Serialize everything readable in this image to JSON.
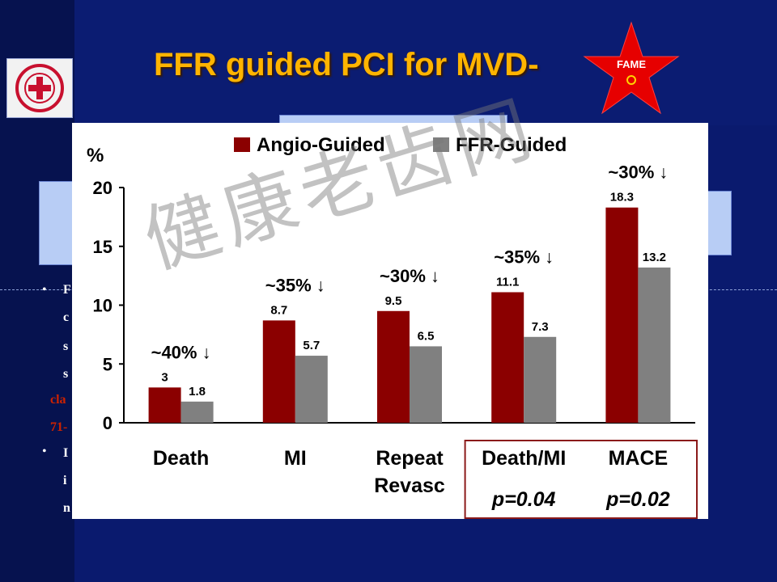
{
  "slide": {
    "title": "FFR guided PCI for MVD-",
    "badge_text": "FAME",
    "watermark": "健康老齿网",
    "left_bullets": [
      "•",
      "•"
    ],
    "side_fragments": [
      {
        "text": "F",
        "color": "#ffffff"
      },
      {
        "text": "c",
        "color": "#ffffff"
      },
      {
        "text": "s",
        "color": "#ffffff"
      },
      {
        "text": "s",
        "color": "#ffffff"
      },
      {
        "text": "cla",
        "color": "#cc2200"
      },
      {
        "text": "71-",
        "color": "#cc2200"
      },
      {
        "text": "I",
        "color": "#ffffff"
      },
      {
        "text": "i",
        "color": "#ffffff"
      },
      {
        "text": "n",
        "color": "#ffffff"
      }
    ]
  },
  "chart_data": {
    "type": "bar",
    "ylabel": "%",
    "ylim": [
      0,
      20
    ],
    "yticks": [
      "0",
      "5",
      "10",
      "15",
      "20"
    ],
    "categories": [
      "Death",
      "MI",
      "Repeat\nRevasc",
      "Death/MI",
      "MACE"
    ],
    "series": [
      {
        "name": "Angio-Guided",
        "color": "#8b0000",
        "values": [
          3,
          8.7,
          9.5,
          11.1,
          18.3
        ],
        "labels": [
          "3",
          "8.7",
          "9.5",
          "11.1",
          "18.3"
        ]
      },
      {
        "name": "FFR-Guided",
        "color": "#808080",
        "values": [
          1.8,
          5.7,
          6.5,
          7.3,
          13.2
        ],
        "labels": [
          "1.8",
          "5.7",
          "6.5",
          "7.3",
          "13.2"
        ]
      }
    ],
    "reductions": [
      "~40%",
      "~35%",
      "~30%",
      "~35%",
      "~30%"
    ],
    "p_values": [
      "p=0.04",
      "p=0.02"
    ],
    "legend_position": "top",
    "grid": false
  }
}
